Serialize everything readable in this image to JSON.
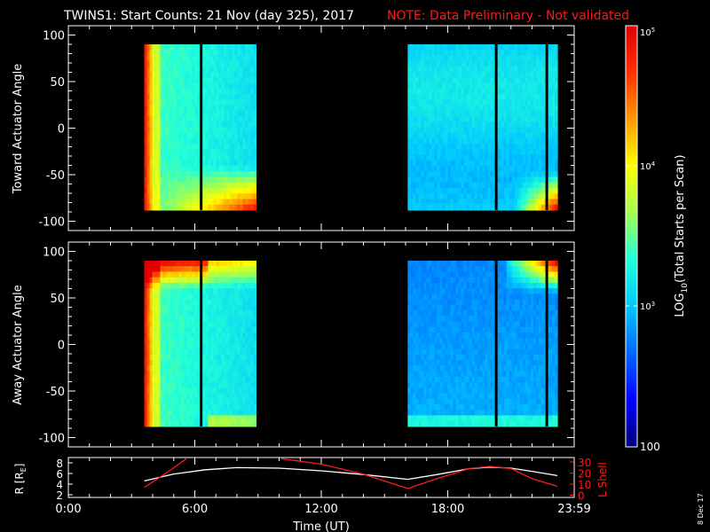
{
  "title": "TWINS1: Start Counts: 21 Nov (day 325), 2017",
  "note": "NOTE: Data Preliminary - Not validated",
  "date_stamp": "8 Dec 17",
  "colors": {
    "background": "#000000",
    "axes": "#ffffff",
    "note": "#ff1a1a",
    "r_line": "#ffffff",
    "lshell_line": "#ff1a1a"
  },
  "chart_data": [
    {
      "type": "heatmap",
      "panel": "top",
      "ylabel": "Toward Actuator Angle",
      "ylim": [
        -110,
        110
      ],
      "yticks": [
        "100",
        "50",
        "0",
        "-50",
        "-100"
      ],
      "xlim": [
        0,
        24
      ],
      "data_blocks_hours": [
        [
          3.6,
          8.9
        ],
        [
          16.1,
          23.2
        ]
      ],
      "gaps_hours": [
        6.3,
        20.3,
        22.7
      ],
      "angle_range": [
        -88,
        90
      ]
    },
    {
      "type": "heatmap",
      "panel": "bottom",
      "ylabel": "Away Actuator Angle",
      "ylim": [
        -110,
        110
      ],
      "yticks": [
        "100",
        "50",
        "0",
        "-50",
        "-100"
      ],
      "xlim": [
        0,
        24
      ],
      "data_blocks_hours": [
        [
          3.6,
          8.9
        ],
        [
          16.1,
          23.2
        ]
      ],
      "gaps_hours": [
        6.3,
        20.3,
        22.7
      ],
      "angle_range": [
        -88,
        90
      ]
    },
    {
      "type": "line",
      "panel": "orbit",
      "xlabel": "Time (UT)",
      "xticks": [
        "0:00",
        "6:00",
        "12:00",
        "18:00",
        "23:59"
      ],
      "ylabel_left_main": "R [R",
      "ylabel_left_sub": "E",
      "ylabel_left_close": "]",
      "ylabel_right": "L Shell",
      "yticks_left": [
        "8",
        "6",
        "4",
        "2"
      ],
      "yticks_right": [
        "30",
        "20",
        "10",
        "0"
      ],
      "series": [
        {
          "name": "R",
          "x": [
            3.6,
            5,
            6.5,
            8,
            10,
            12,
            14,
            16.1,
            17.5,
            19,
            20,
            21,
            22,
            23.2
          ],
          "y": [
            4.6,
            5.9,
            6.7,
            7.1,
            7.0,
            6.5,
            5.8,
            4.9,
            5.8,
            6.9,
            7.2,
            7.0,
            6.4,
            5.6
          ]
        },
        {
          "name": "L Shell",
          "x": [
            3.6,
            4.8,
            5.6,
            10.1,
            12,
            14,
            16.1,
            17.5,
            19,
            20,
            21,
            22,
            23.2
          ],
          "y": [
            7,
            22,
            33,
            33,
            28,
            19,
            6,
            15,
            24,
            26,
            24,
            15,
            8
          ]
        }
      ]
    }
  ],
  "colorbar": {
    "label_main": "LOG",
    "label_sub": "10",
    "label_rest": "(Total Starts per Scan)",
    "tick_top_base": "10",
    "tick_top_exp": "5",
    "tick_mid1_base": "10",
    "tick_mid1_exp": "4",
    "tick_mid2_base": "10",
    "tick_mid2_exp": "3",
    "tick_bottom": "100",
    "log_range": [
      2,
      5
    ],
    "scale": [
      "#00007a",
      "#0000ff",
      "#0066ff",
      "#00c8ff",
      "#22ffd8",
      "#a0ff50",
      "#ffff00",
      "#ff9900",
      "#ff3000",
      "#e00000"
    ]
  }
}
